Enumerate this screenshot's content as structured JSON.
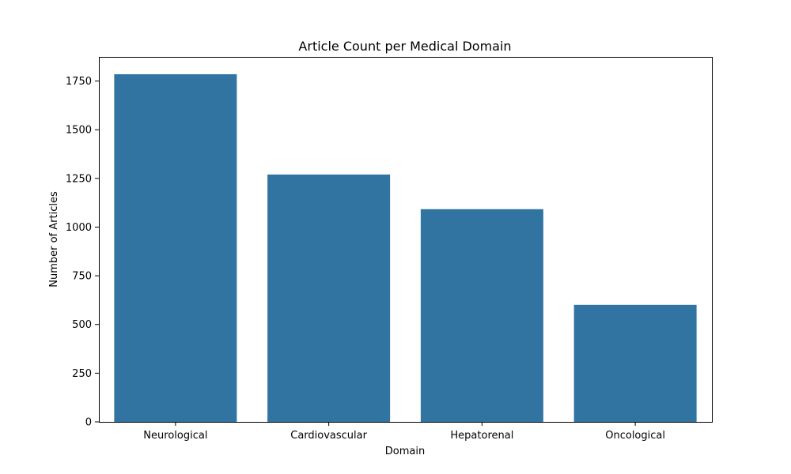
{
  "chart_data": {
    "type": "bar",
    "title": "Article Count per Medical Domain",
    "xlabel": "Domain",
    "ylabel": "Number of Articles",
    "categories": [
      "Neurological",
      "Cardiovascular",
      "Hepatorenal",
      "Oncological"
    ],
    "values": [
      1785,
      1270,
      1092,
      601
    ],
    "ylim": [
      0,
      1874
    ],
    "yticks": [
      0,
      250,
      500,
      750,
      1000,
      1250,
      1500,
      1750
    ],
    "bar_color": "#3274a1",
    "grid": false,
    "legend": "none"
  }
}
